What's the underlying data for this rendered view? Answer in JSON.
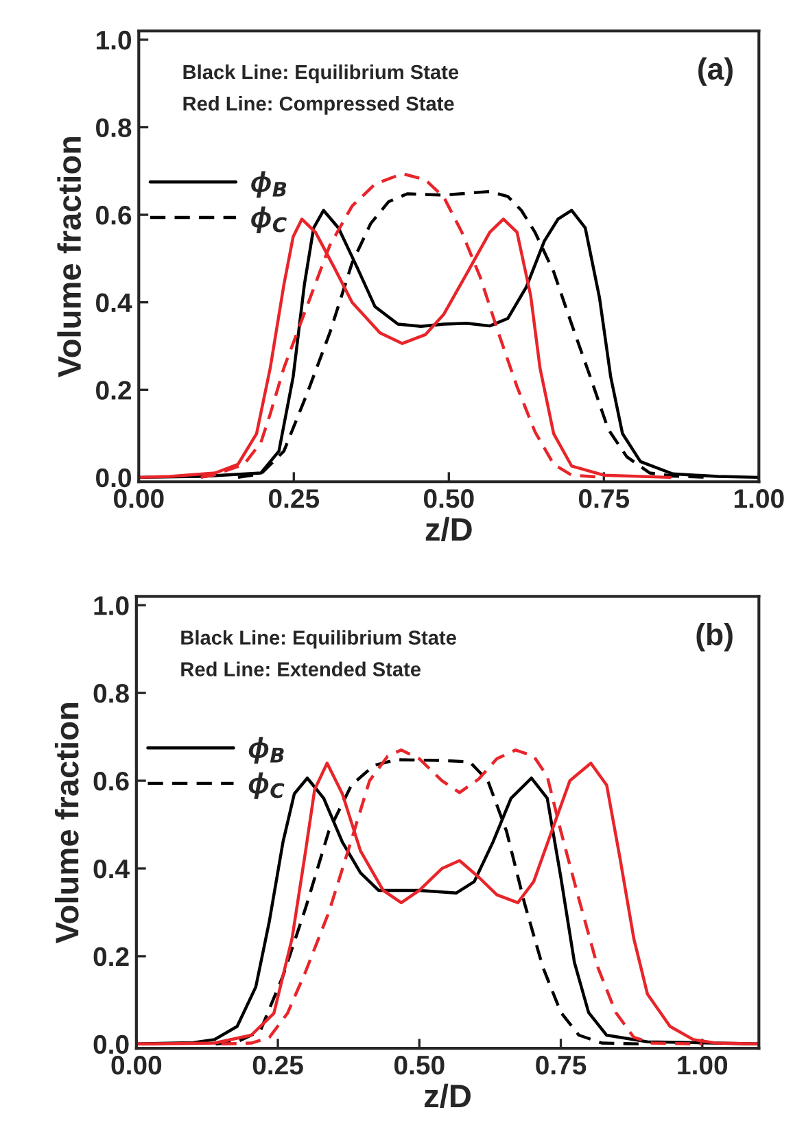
{
  "chart_data": [
    {
      "type": "line",
      "xlabel": "z/D",
      "ylabel": "Volume fraction",
      "annotations": [
        "Black Line: Equilibrium State",
        "Red Line: Compressed State",
        "(a)"
      ],
      "xlim": [
        0,
        1.0
      ],
      "ylim": [
        -0.01,
        1.02
      ],
      "xticks": [
        {
          "value": 0,
          "label": "0.00"
        },
        {
          "value": 0.25,
          "label": "0.25"
        },
        {
          "value": 0.5,
          "label": "0.50"
        },
        {
          "value": 0.75,
          "label": "0.75"
        },
        {
          "value": 1.0,
          "label": "1.00"
        }
      ],
      "yticks": [
        {
          "value": 0,
          "label": "0.0"
        },
        {
          "value": 0.2,
          "label": "0.2"
        },
        {
          "value": 0.4,
          "label": "0.4"
        },
        {
          "value": 0.6,
          "label": "0.6"
        },
        {
          "value": 0.8,
          "label": "0.8"
        },
        {
          "value": 1.0,
          "label": "1.0"
        }
      ],
      "grid": false,
      "legend": "left",
      "marker": "none",
      "series": [
        {
          "name": "ϕ$_{B}$",
          "color": "#000000",
          "line_style": "solid",
          "x": [
            0,
            0.1,
            0.197,
            0.226,
            0.249,
            0.267,
            0.282,
            0.298,
            0.322,
            0.352,
            0.381,
            0.418,
            0.455,
            0.492,
            0.529,
            0.566,
            0.595,
            0.625,
            0.654,
            0.676,
            0.698,
            0.72,
            0.743,
            0.761,
            0.78,
            0.809,
            0.861,
            0.934,
            1.0
          ],
          "values": [
            0,
            0.002,
            0.01,
            0.06,
            0.23,
            0.44,
            0.57,
            0.61,
            0.57,
            0.48,
            0.39,
            0.35,
            0.345,
            0.35,
            0.352,
            0.346,
            0.363,
            0.435,
            0.54,
            0.59,
            0.61,
            0.57,
            0.41,
            0.23,
            0.1,
            0.036,
            0.008,
            0.002,
            0
          ]
        },
        {
          "name": "ϕ$_{C}$",
          "color": "#000000",
          "line_style": "dashed",
          "x": [
            0.16,
            0.197,
            0.234,
            0.271,
            0.308,
            0.344,
            0.374,
            0.403,
            0.433,
            0.492,
            0.536,
            0.566,
            0.595,
            0.617,
            0.639,
            0.669,
            0.698,
            0.728,
            0.757,
            0.787,
            0.824,
            0.861,
            0.92
          ],
          "values": [
            0,
            0.008,
            0.06,
            0.19,
            0.33,
            0.49,
            0.58,
            0.63,
            0.648,
            0.645,
            0.65,
            0.653,
            0.642,
            0.61,
            0.56,
            0.47,
            0.35,
            0.23,
            0.11,
            0.047,
            0.01,
            0.003,
            0
          ]
        },
        {
          "color": "#e8252a",
          "line_style": "solid",
          "x": [
            0,
            0.05,
            0.123,
            0.16,
            0.19,
            0.212,
            0.234,
            0.249,
            0.263,
            0.285,
            0.315,
            0.344,
            0.389,
            0.425,
            0.462,
            0.492,
            0.529,
            0.566,
            0.588,
            0.61,
            0.632,
            0.647,
            0.669,
            0.698,
            0.75,
            0.857
          ],
          "values": [
            0,
            0.002,
            0.01,
            0.03,
            0.1,
            0.25,
            0.44,
            0.55,
            0.59,
            0.56,
            0.48,
            0.4,
            0.33,
            0.306,
            0.326,
            0.373,
            0.466,
            0.56,
            0.59,
            0.56,
            0.415,
            0.25,
            0.1,
            0.026,
            0.005,
            0
          ]
        },
        {
          "color": "#e8252a",
          "line_style": "dashed",
          "x": [
            0.1,
            0.12,
            0.17,
            0.197,
            0.212,
            0.234,
            0.271,
            0.308,
            0.344,
            0.381,
            0.425,
            0.462,
            0.492,
            0.521,
            0.551,
            0.58,
            0.61,
            0.639,
            0.669,
            0.698,
            0.75
          ],
          "values": [
            0,
            0.005,
            0.03,
            0.08,
            0.145,
            0.25,
            0.39,
            0.53,
            0.62,
            0.67,
            0.694,
            0.68,
            0.64,
            0.56,
            0.456,
            0.33,
            0.207,
            0.104,
            0.03,
            0.005,
            0
          ]
        }
      ]
    },
    {
      "type": "line",
      "xlabel": "z/D",
      "ylabel": "Volume fraction",
      "annotations": [
        "Black Line: Equilibrium State",
        "Red Line: Extended State",
        "(b)"
      ],
      "xlim": [
        0,
        1.1
      ],
      "ylim": [
        -0.01,
        1.02
      ],
      "xticks": [
        {
          "value": 0,
          "label": "0.00"
        },
        {
          "value": 0.25,
          "label": "0.25"
        },
        {
          "value": 0.5,
          "label": "0.50"
        },
        {
          "value": 0.75,
          "label": "0.75"
        },
        {
          "value": 1.0,
          "label": "1.00"
        }
      ],
      "yticks": [
        {
          "value": 0,
          "label": "0.0"
        },
        {
          "value": 0.2,
          "label": "0.2"
        },
        {
          "value": 0.4,
          "label": "0.4"
        },
        {
          "value": 0.6,
          "label": "0.6"
        },
        {
          "value": 0.8,
          "label": "0.8"
        },
        {
          "value": 1.0,
          "label": "1.0"
        }
      ],
      "grid": false,
      "legend": "left",
      "marker": "none",
      "series": [
        {
          "name": "ϕ$_{B}$",
          "color": "#000000",
          "line_style": "solid",
          "x": [
            0,
            0.1,
            0.138,
            0.178,
            0.211,
            0.235,
            0.259,
            0.279,
            0.302,
            0.331,
            0.364,
            0.396,
            0.428,
            0.5,
            0.565,
            0.597,
            0.63,
            0.662,
            0.698,
            0.726,
            0.75,
            0.774,
            0.799,
            0.831,
            0.903,
            1.1
          ],
          "values": [
            0,
            0.003,
            0.01,
            0.04,
            0.13,
            0.28,
            0.46,
            0.57,
            0.606,
            0.56,
            0.46,
            0.39,
            0.35,
            0.35,
            0.344,
            0.37,
            0.46,
            0.56,
            0.606,
            0.56,
            0.38,
            0.186,
            0.072,
            0.02,
            0.005,
            0
          ]
        },
        {
          "name": "ϕ$_{C}$",
          "color": "#000000",
          "line_style": "dashed",
          "x": [
            0.14,
            0.178,
            0.219,
            0.259,
            0.299,
            0.34,
            0.38,
            0.42,
            0.46,
            0.541,
            0.589,
            0.621,
            0.654,
            0.686,
            0.718,
            0.75,
            0.782,
            0.823,
            0.9
          ],
          "values": [
            0,
            0.005,
            0.03,
            0.155,
            0.31,
            0.485,
            0.59,
            0.635,
            0.648,
            0.646,
            0.643,
            0.6,
            0.485,
            0.32,
            0.176,
            0.072,
            0.02,
            0.002,
            0
          ]
        },
        {
          "color": "#e8252a",
          "line_style": "solid",
          "x": [
            0,
            0.138,
            0.203,
            0.243,
            0.275,
            0.299,
            0.315,
            0.337,
            0.364,
            0.396,
            0.436,
            0.468,
            0.5,
            0.54,
            0.571,
            0.605,
            0.637,
            0.674,
            0.702,
            0.734,
            0.766,
            0.803,
            0.831,
            0.855,
            0.879,
            0.903,
            0.943,
            0.984,
            1.024,
            1.1
          ],
          "values": [
            0,
            0.002,
            0.02,
            0.07,
            0.24,
            0.44,
            0.58,
            0.64,
            0.57,
            0.44,
            0.35,
            0.322,
            0.35,
            0.4,
            0.418,
            0.38,
            0.34,
            0.322,
            0.37,
            0.485,
            0.6,
            0.64,
            0.59,
            0.42,
            0.24,
            0.114,
            0.04,
            0.01,
            0.002,
            0
          ]
        },
        {
          "color": "#e8252a",
          "line_style": "dashed",
          "x": [
            0.15,
            0.203,
            0.235,
            0.267,
            0.299,
            0.34,
            0.38,
            0.412,
            0.444,
            0.468,
            0.5,
            0.54,
            0.571,
            0.605,
            0.637,
            0.67,
            0.702,
            0.726,
            0.75,
            0.782,
            0.815,
            0.847,
            0.879,
            0.911,
            1.0
          ],
          "values": [
            0,
            0.002,
            0.015,
            0.07,
            0.165,
            0.3,
            0.465,
            0.6,
            0.656,
            0.67,
            0.65,
            0.6,
            0.573,
            0.604,
            0.65,
            0.67,
            0.656,
            0.61,
            0.485,
            0.33,
            0.176,
            0.072,
            0.015,
            0.002,
            0
          ]
        }
      ]
    }
  ]
}
